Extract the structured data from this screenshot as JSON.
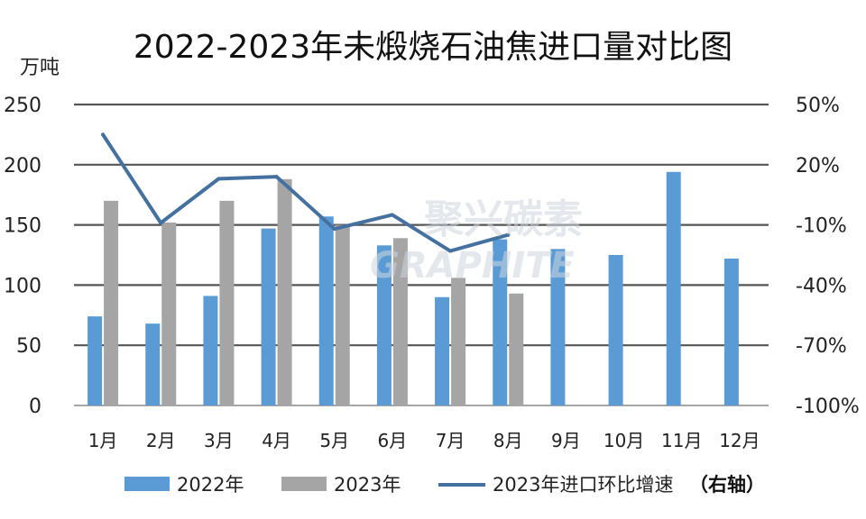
{
  "chart_data": {
    "type": "bar",
    "title": "2022-2023年未煅烧石油焦进口量对比图",
    "ylabel": "万吨",
    "categories": [
      "1月",
      "2月",
      "3月",
      "4月",
      "5月",
      "6月",
      "7月",
      "8月",
      "9月",
      "10月",
      "11月",
      "12月"
    ],
    "ylim": [
      0,
      250
    ],
    "yticks": [
      0,
      50,
      100,
      150,
      200,
      250
    ],
    "y2lim": [
      -100,
      50
    ],
    "y2ticks": [
      "-100%",
      "-70%",
      "-40%",
      "-10%",
      "20%",
      "50%"
    ],
    "y2tick_values": [
      -100,
      -70,
      -40,
      -10,
      20,
      50
    ],
    "series": [
      {
        "name": "2022年",
        "type": "bar",
        "axis": "left",
        "color": "#5b9bd5",
        "values": [
          74,
          68,
          91,
          147,
          157,
          133,
          90,
          138,
          130,
          125,
          194,
          122
        ]
      },
      {
        "name": "2023年",
        "type": "bar",
        "axis": "left",
        "color": "#a5a5a5",
        "values": [
          170,
          152,
          170,
          188,
          150,
          139,
          106,
          93,
          null,
          null,
          null,
          null
        ]
      },
      {
        "name": "2023年进口环比增速",
        "type": "line",
        "axis": "right",
        "color": "#44719f",
        "values": [
          35,
          -9,
          13,
          14,
          -12,
          -5,
          -23,
          -15,
          null,
          null,
          null,
          null
        ]
      }
    ],
    "legend_suffix": "（右轴）",
    "grid": true,
    "legend_position": "bottom"
  },
  "watermark": {
    "cn": "聚兴碳素",
    "en": "GRAPHITE"
  }
}
